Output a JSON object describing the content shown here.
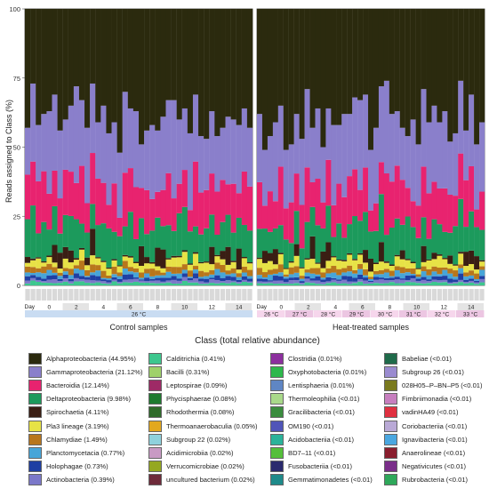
{
  "chart_data": {
    "type": "bar",
    "stacked": true,
    "ylabel": "Reads assigned to Class (%)",
    "ylim": [
      0,
      100
    ],
    "yticks": [
      0,
      25,
      50,
      75,
      100
    ],
    "day_label": "Day",
    "panels": [
      {
        "name": "Control samples",
        "days": [
          "0",
          "2",
          "4",
          "6",
          "8",
          "10",
          "12",
          "14"
        ],
        "temperature_labels": [
          "26 °C"
        ],
        "top_values": [
          43,
          27,
          42,
          38,
          37,
          31,
          44,
          40,
          35,
          28,
          33,
          43,
          27,
          41,
          35,
          45,
          41,
          52,
          30,
          36,
          37,
          49,
          44,
          42,
          44,
          39,
          33,
          33,
          40,
          36,
          45,
          31,
          46,
          47,
          37,
          46,
          43,
          39,
          40,
          42,
          36,
          43
        ]
      },
      {
        "name": "Heat-treated samples",
        "days": [
          "0",
          "2",
          "4",
          "6",
          "8",
          "10",
          "12",
          "14"
        ],
        "temperature_labels": [
          "26 °C",
          "27 °C",
          "28 °C",
          "29 °C",
          "30 °C",
          "31 °C",
          "32 °C",
          "33 °C"
        ],
        "top_values": [
          38,
          51,
          46,
          41,
          35,
          51,
          49,
          38,
          47,
          29,
          43,
          36,
          50,
          36,
          42,
          42,
          38,
          38,
          32,
          33,
          31,
          51,
          43,
          28,
          26,
          38,
          37,
          43,
          46,
          40,
          49,
          29,
          41,
          35,
          41,
          37,
          48,
          45,
          26,
          44,
          31,
          49,
          41
        ]
      }
    ],
    "legend_title": "Class (total relative abundance)",
    "legend": [
      {
        "label": "Alphaproteobacteria (44.95%)",
        "color": "#2b2a0e"
      },
      {
        "label": "Gammaproteobacteria (21.12%)",
        "color": "#8a7fcb"
      },
      {
        "label": "Bacteroidia (12.14%)",
        "color": "#e8236f"
      },
      {
        "label": "Deltaproteobacteria (9.98%)",
        "color": "#1c9a5c"
      },
      {
        "label": "Spirochaetia (4.11%)",
        "color": "#3a1e14"
      },
      {
        "label": "Pla3 lineage (3.19%)",
        "color": "#e7e246"
      },
      {
        "label": "Chlamydiae (1.49%)",
        "color": "#b8761c"
      },
      {
        "label": "Planctomycetacia (0.77%)",
        "color": "#47a5d8"
      },
      {
        "label": "Holophagae (0.73%)",
        "color": "#1f3fa3"
      },
      {
        "label": "Actinobacteria (0.39%)",
        "color": "#7b78c9"
      },
      {
        "label": "Calditrichia (0.41%)",
        "color": "#3dc78e"
      },
      {
        "label": "Bacilli (0.31%)",
        "color": "#9fd16a"
      },
      {
        "label": "Leptospirae (0.09%)",
        "color": "#9e2a66"
      },
      {
        "label": "Phycisphaerae (0.08%)",
        "color": "#1d7a2e"
      },
      {
        "label": "Rhodothermia (0.08%)",
        "color": "#2f6b2a"
      },
      {
        "label": "Thermoanaerobaculia (0.05%)",
        "color": "#e3a81e"
      },
      {
        "label": "Subgroup 22 (0.02%)",
        "color": "#8fd2dd"
      },
      {
        "label": "Acidimicrobiia (0.02%)",
        "color": "#c89ac4"
      },
      {
        "label": "Verrucomicrobiae (0.02%)",
        "color": "#95a820"
      },
      {
        "label": "uncultured bacterium (0.02%)",
        "color": "#6e2a3a"
      },
      {
        "label": "Clostridia (0.01%)",
        "color": "#8c2f9e"
      },
      {
        "label": "Oxyphotobacteria (0.01%)",
        "color": "#2eb84c"
      },
      {
        "label": "Lentisphaeria (0.01%)",
        "color": "#5f86c4"
      },
      {
        "label": "Thermoleophilia (<0.01)",
        "color": "#a9d98a"
      },
      {
        "label": "Gracilibacteria (<0.01)",
        "color": "#3a8c3e"
      },
      {
        "label": "OM190 (<0.01)",
        "color": "#5055b8"
      },
      {
        "label": "Acidobacteriia (<0.01)",
        "color": "#2bb39a"
      },
      {
        "label": "BD7–11 (<0.01)",
        "color": "#55bf3a"
      },
      {
        "label": "Fusobacteriia (<0.01)",
        "color": "#2a2a6e"
      },
      {
        "label": "Gemmatimonadetes (<0.01)",
        "color": "#1e8a8a"
      },
      {
        "label": "Babeliae (<0.01)",
        "color": "#1f6b4a"
      },
      {
        "label": "Subgroup 26 (<0.01)",
        "color": "#9a8bd0"
      },
      {
        "label": "028H05–P–BN–P5 (<0.01)",
        "color": "#7a7a1e"
      },
      {
        "label": "Fimbriimonadia (<0.01)",
        "color": "#c77fbf"
      },
      {
        "label": "vadinHA49 (<0.01)",
        "color": "#e03040"
      },
      {
        "label": "Coriobacteriia (<0.01)",
        "color": "#b9a9d6"
      },
      {
        "label": "Ignavibacteria (<0.01)",
        "color": "#4aa7e0"
      },
      {
        "label": "Anaerolineae (<0.01)",
        "color": "#8a1e2e"
      },
      {
        "label": "Negativicutes (<0.01)",
        "color": "#7a2e8a"
      },
      {
        "label": "Rubrobacteria (<0.01)",
        "color": "#2ea85a"
      }
    ]
  }
}
